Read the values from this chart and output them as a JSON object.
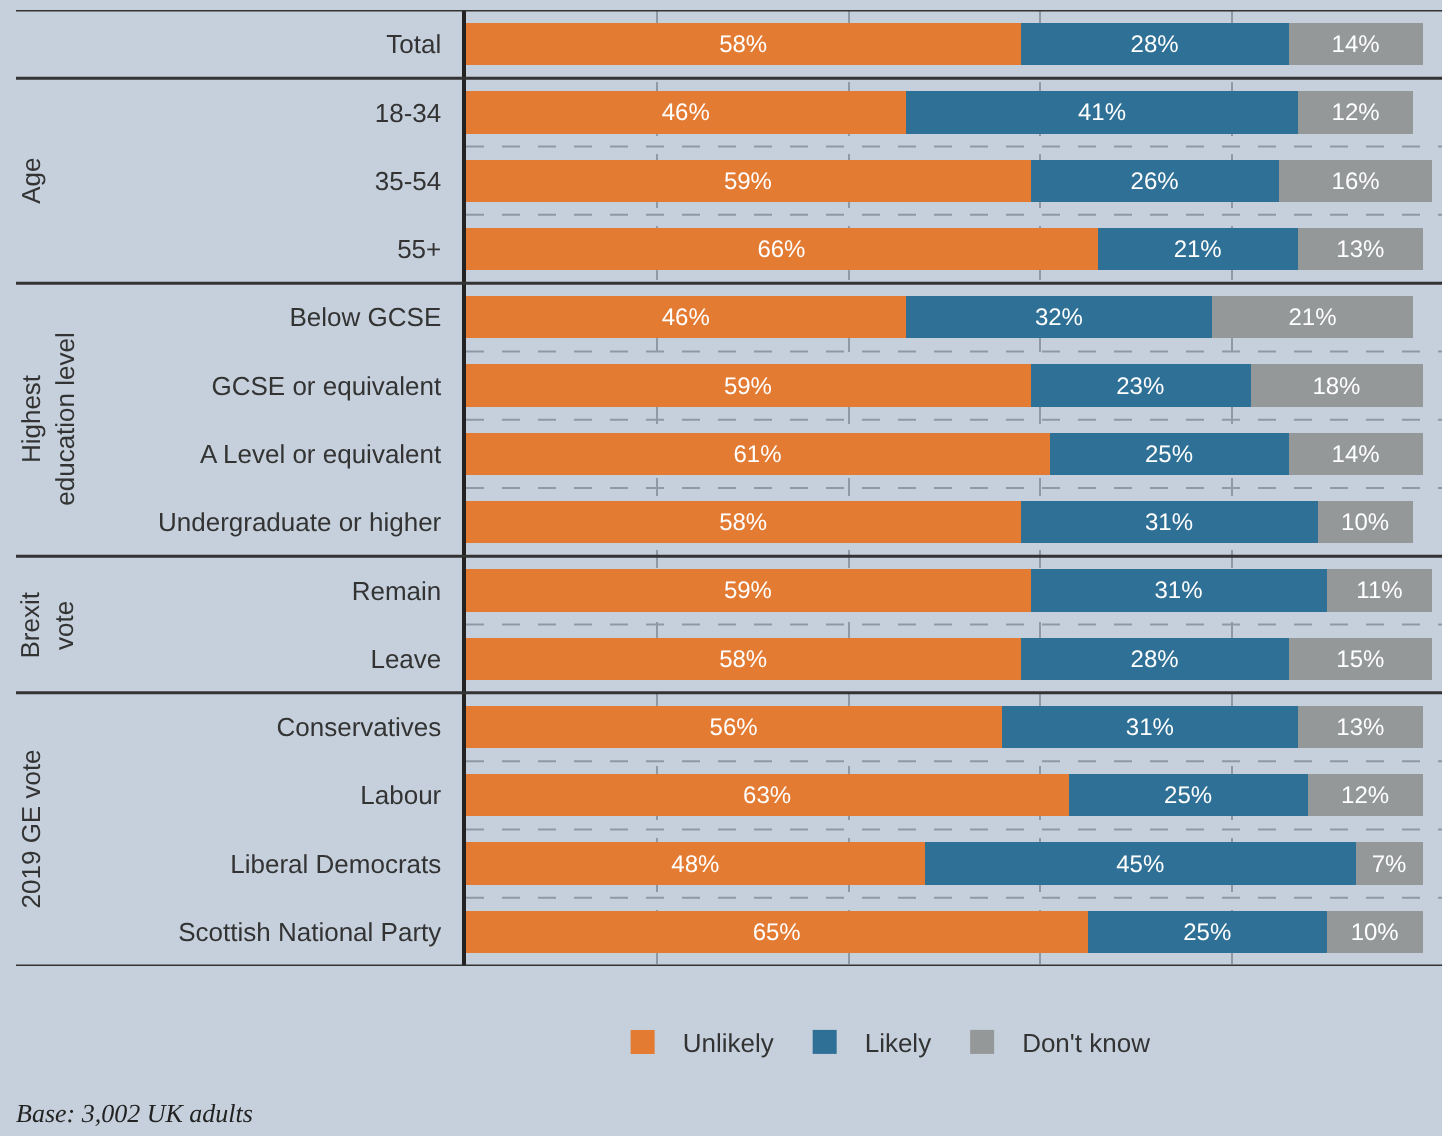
{
  "chart_data": {
    "type": "bar",
    "orientation": "horizontal",
    "stacked": true,
    "categories": [
      "Total",
      "18-34",
      "35-54",
      "55+",
      "Below GCSE",
      "GCSE or equivalent",
      "A Level or equivalent",
      "Undergraduate or higher",
      "Remain",
      "Leave",
      "Conservatives",
      "Labour",
      "Liberal Democrats",
      "Scottish National Party"
    ],
    "series": [
      {
        "name": "Unlikely",
        "color": "#e37b33",
        "values": [
          58,
          46,
          59,
          66,
          46,
          59,
          61,
          58,
          59,
          58,
          56,
          63,
          48,
          65
        ],
        "value_labels": [
          "58%",
          "46%",
          "59%",
          "66%",
          "46%",
          "59%",
          "61%",
          "58%",
          "59%",
          "58%",
          "56%",
          "63%",
          "48%",
          "65%"
        ]
      },
      {
        "name": "Likely",
        "color": "#2f7096",
        "values": [
          28,
          41,
          26,
          21,
          32,
          23,
          25,
          31,
          31,
          28,
          31,
          25,
          45,
          25
        ],
        "value_labels": [
          "28%",
          "41%",
          "26%",
          "21%",
          "32%",
          "23%",
          "25%",
          "31%",
          "31%",
          "28%",
          "31%",
          "25%",
          "45%",
          "25%"
        ]
      },
      {
        "name": "Don't know",
        "color": "#959899",
        "values": [
          14,
          12,
          16,
          13,
          21,
          18,
          14,
          10,
          11,
          15,
          13,
          12,
          7,
          10
        ],
        "value_labels": [
          "14%",
          "12%",
          "16%",
          "13%",
          "21%",
          "18%",
          "14%",
          "10%",
          "11%",
          "15%",
          "13%",
          "12%",
          "7%",
          "10%"
        ]
      }
    ],
    "xlim": [
      0,
      102
    ],
    "xticks": [
      {
        "value": 20,
        "label": null
      },
      {
        "value": 40,
        "label": null
      },
      {
        "value": 60,
        "label": null
      },
      {
        "value": 80,
        "label": null
      }
    ],
    "tick_labels": "y",
    "grid": "x",
    "legend": "bottom",
    "annotations": [
      "Age",
      "Highest\neducation level",
      "Brexit\nvote",
      "2019 GE vote",
      "Base: 3,002 UK adults"
    ]
  }
}
